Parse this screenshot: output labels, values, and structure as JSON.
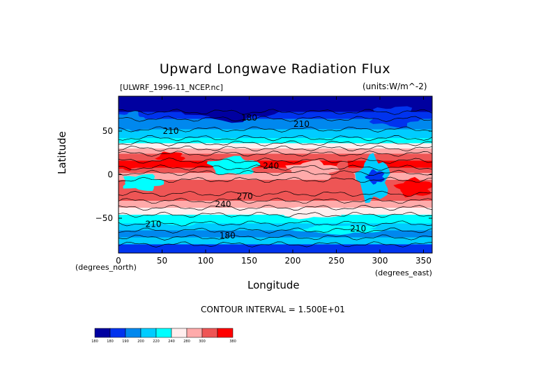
{
  "chart_data": {
    "type": "heatmap",
    "title": "Upward Longwave Radiation Flux",
    "file_label": "[ULWRF_1996-11_NCEP.nc]",
    "units_label": "(units:W/m^-2)",
    "xlabel": "Longitude",
    "ylabel": "Latitude",
    "x_unit_label": "(degrees_east)",
    "y_unit_label": "(degrees_north)",
    "x_ticks": [
      "0",
      "50",
      "100",
      "150",
      "200",
      "250",
      "300",
      "350"
    ],
    "y_ticks": [
      "50",
      "0",
      "−50"
    ],
    "xlim": [
      0,
      360
    ],
    "ylim": [
      -90,
      90
    ],
    "contour_interval_text": "CONTOUR INTERVAL = 1.500E+01",
    "contour_labels": [
      {
        "text": "180",
        "x": 125,
        "y": -73
      },
      {
        "text": "210",
        "x": 40,
        "y": -60
      },
      {
        "text": "210",
        "x": 275,
        "y": -65
      },
      {
        "text": "240",
        "x": 120,
        "y": -37
      },
      {
        "text": "270",
        "x": 145,
        "y": -28
      },
      {
        "text": "240",
        "x": 175,
        "y": 7
      },
      {
        "text": "210",
        "x": 60,
        "y": 47
      },
      {
        "text": "180",
        "x": 150,
        "y": 62
      },
      {
        "text": "210",
        "x": 210,
        "y": 55
      }
    ],
    "colorbar": {
      "levels": [
        "180",
        "180",
        "190",
        "200",
        "220",
        "240",
        "280",
        "300",
        "380"
      ],
      "colors": [
        "#0000a0",
        "#0033ee",
        "#0088ee",
        "#00ccff",
        "#00ffff",
        "#ffeeee",
        "#ffaaaa",
        "#ee5555",
        "#ff0000"
      ]
    },
    "zonal_profile": [
      {
        "lat": 90,
        "color": "#0000a0"
      },
      {
        "lat": 72,
        "color": "#0033ee"
      },
      {
        "lat": 64,
        "color": "#0088ee"
      },
      {
        "lat": 52,
        "color": "#00ccff"
      },
      {
        "lat": 42,
        "color": "#00ffff"
      },
      {
        "lat": 36,
        "color": "#ffeeee"
      },
      {
        "lat": 30,
        "color": "#ffaaaa"
      },
      {
        "lat": 24,
        "color": "#ee5555"
      },
      {
        "lat": 16,
        "color": "#ff0000"
      },
      {
        "lat": 8,
        "color": "#ee5555"
      },
      {
        "lat": 2,
        "color": "#ffaaaa"
      },
      {
        "lat": -6,
        "color": "#ee5555"
      },
      {
        "lat": -22,
        "color": "#ee5555"
      },
      {
        "lat": -30,
        "color": "#ffaaaa"
      },
      {
        "lat": -38,
        "color": "#ffeeee"
      },
      {
        "lat": -46,
        "color": "#00ffff"
      },
      {
        "lat": -56,
        "color": "#00ccff"
      },
      {
        "lat": -64,
        "color": "#0088ee"
      },
      {
        "lat": -72,
        "color": "#00ccff"
      },
      {
        "lat": -80,
        "color": "#0033ee"
      }
    ],
    "patches": [
      {
        "lon": [
          80,
          180
        ],
        "lat": [
          62,
          90
        ],
        "color": "#0000a0"
      },
      {
        "lon": [
          290,
          345
        ],
        "lat": [
          55,
          78
        ],
        "color": "#0033ee"
      },
      {
        "lon": [
          0,
          30
        ],
        "lat": [
          50,
          72
        ],
        "color": "#0088ee"
      },
      {
        "lon": [
          105,
          160
        ],
        "lat": [
          0,
          20
        ],
        "color": "#00ffff"
      },
      {
        "lon": [
          275,
          310
        ],
        "lat": [
          -30,
          20
        ],
        "color": "#00ccff"
      },
      {
        "lon": [
          285,
          305
        ],
        "lat": [
          -10,
          5
        ],
        "color": "#0033ee"
      },
      {
        "lon": [
          45,
          75
        ],
        "lat": [
          14,
          26
        ],
        "color": "#ff0000"
      },
      {
        "lon": [
          0,
          20
        ],
        "lat": [
          5,
          16
        ],
        "color": "#ff0000"
      },
      {
        "lon": [
          240,
          270
        ],
        "lat": [
          -25,
          15
        ],
        "color": "#ee5555"
      },
      {
        "lon": [
          195,
          250
        ],
        "lat": [
          -5,
          15
        ],
        "color": "#ffaaaa"
      },
      {
        "lon": [
          320,
          360
        ],
        "lat": [
          -25,
          -5
        ],
        "color": "#ff0000"
      },
      {
        "lon": [
          180,
          255
        ],
        "lat": [
          -50,
          -38
        ],
        "color": "#ffeeee"
      },
      {
        "lon": [
          210,
          300
        ],
        "lat": [
          -68,
          -58
        ],
        "color": "#00ffff"
      },
      {
        "lon": [
          30,
          110
        ],
        "lat": [
          -58,
          -48
        ],
        "color": "#00ffff"
      },
      {
        "lon": [
          5,
          50
        ],
        "lat": [
          -18,
          0
        ],
        "color": "#00ffff"
      }
    ]
  }
}
